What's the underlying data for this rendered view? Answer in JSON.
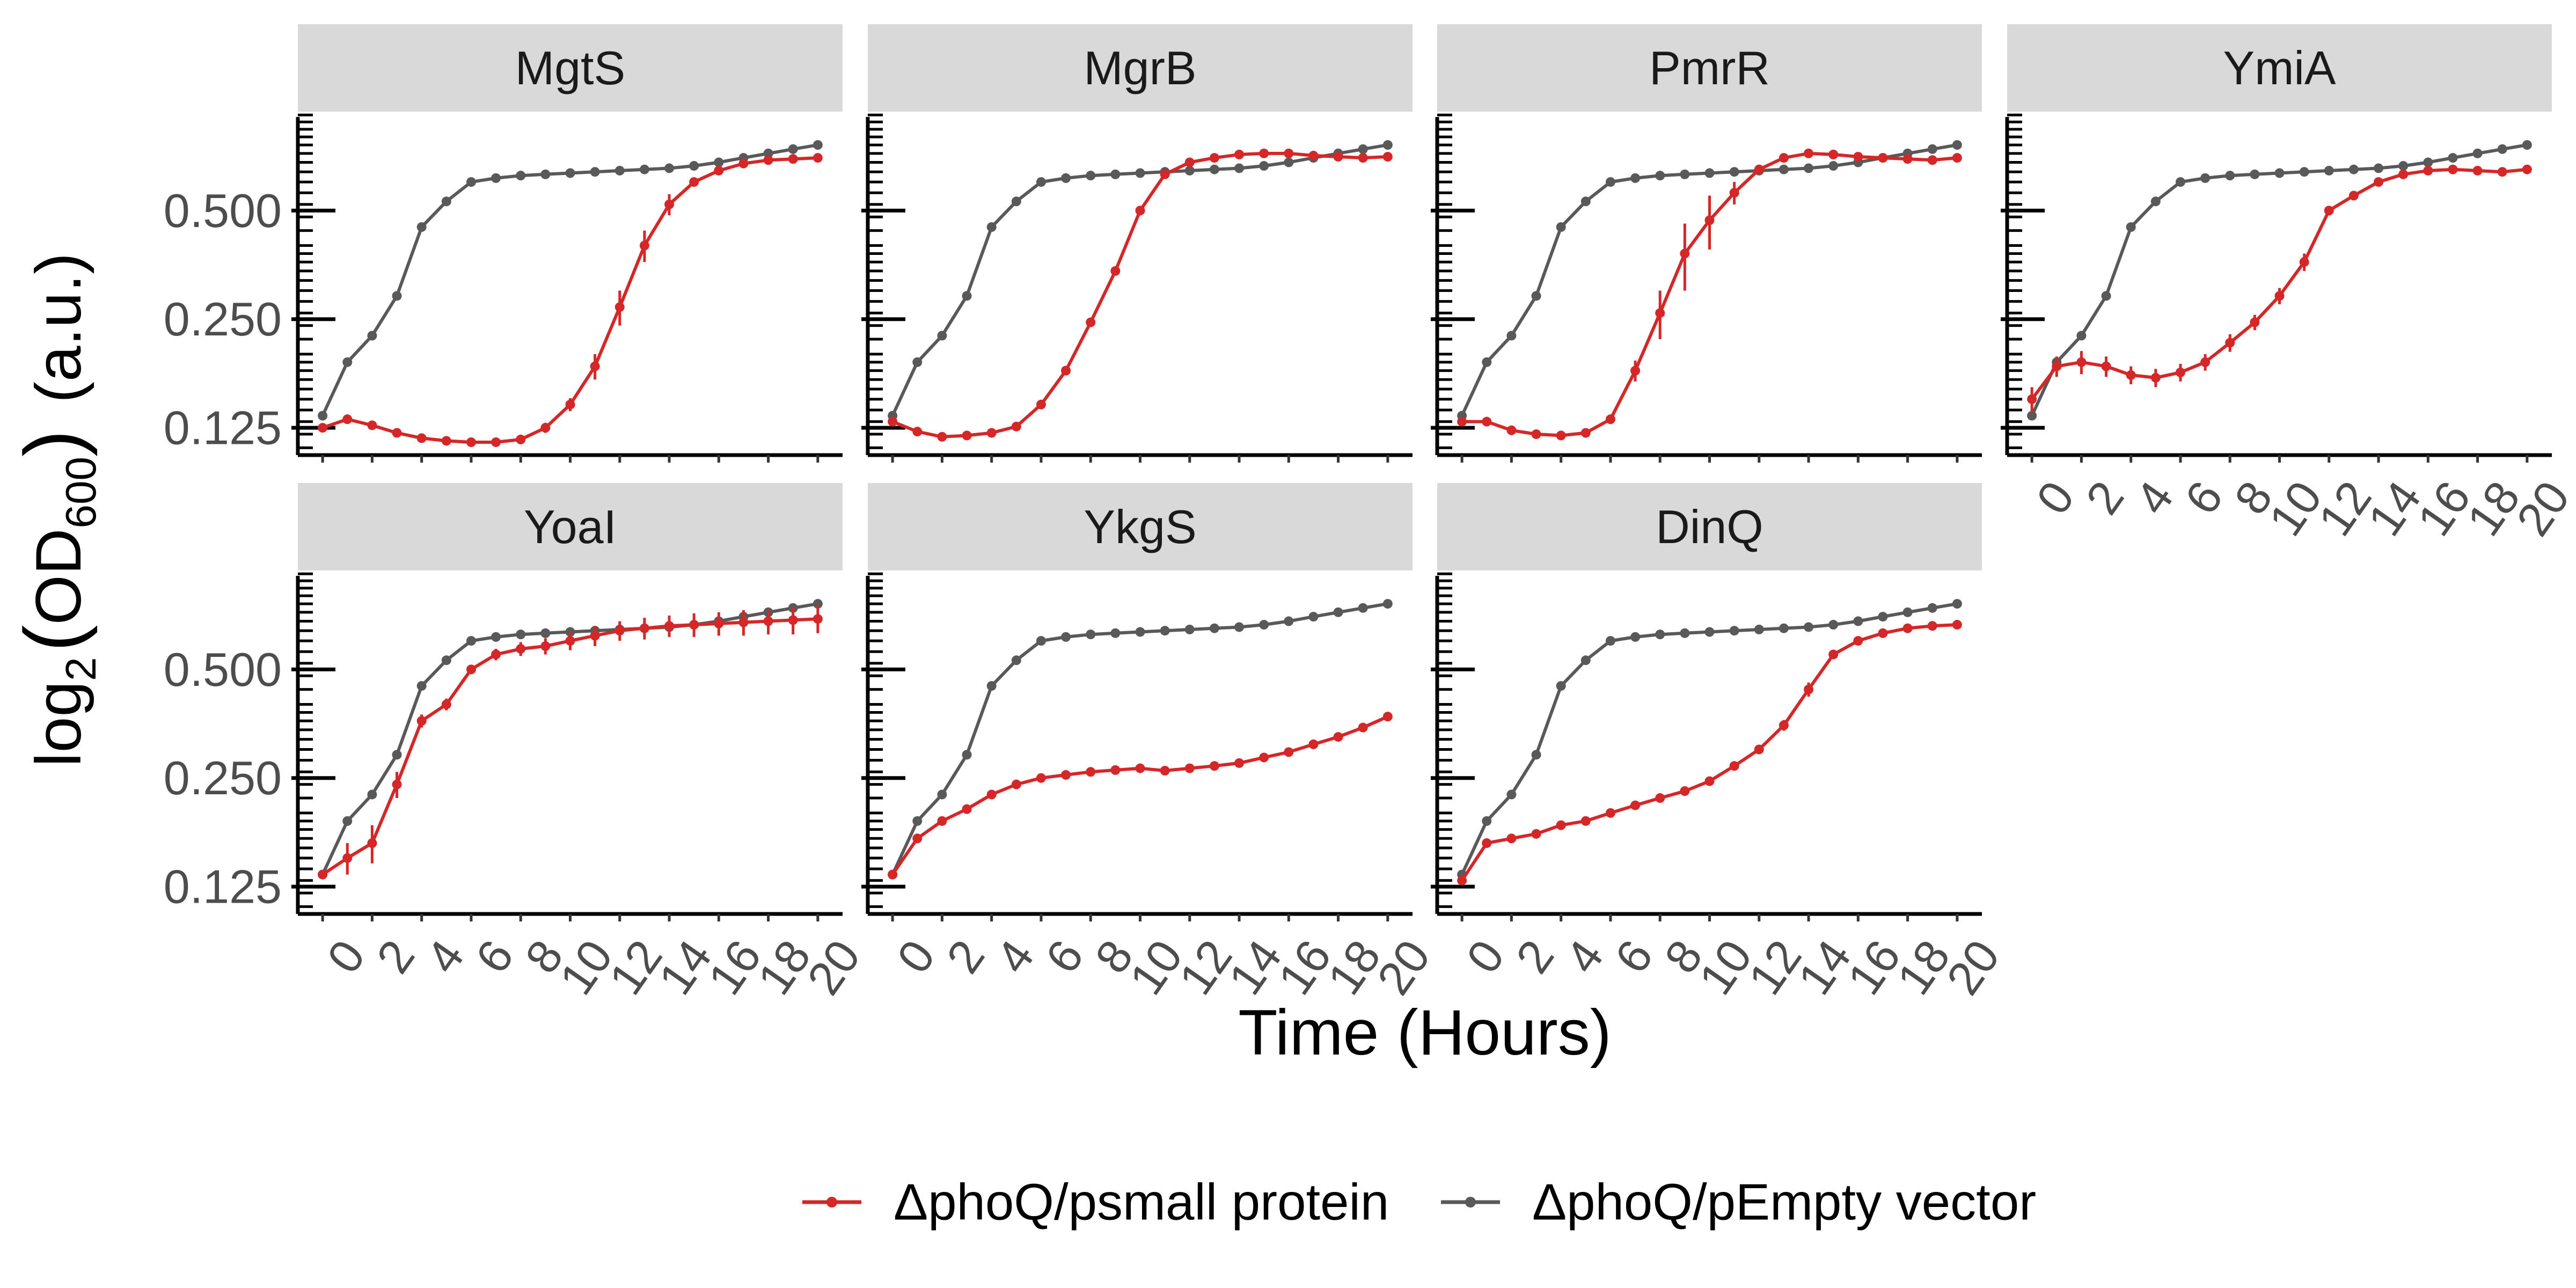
{
  "figure": {
    "ylabel_base": "log",
    "ylabel_sub": "2",
    "ylabel_open": "(",
    "ylabel_od": "OD",
    "ylabel_od_sub": "600",
    "ylabel_close": ")",
    "ylabel_units": "(a.u.)",
    "xlabel": "Time (Hours)"
  },
  "legend": {
    "items": [
      {
        "label": "ΔphoQ/psmall protein",
        "color": "#d62728"
      },
      {
        "label": "ΔphoQ/pEmpty vector",
        "color": "#595959"
      }
    ]
  },
  "chart_data": {
    "type": "line",
    "facets": [
      "MgtS",
      "MgrB",
      "PmrR",
      "YmiA",
      "YoaI",
      "YkgS",
      "DinQ"
    ],
    "x": [
      0,
      1,
      2,
      3,
      4,
      5,
      6,
      7,
      8,
      9,
      10,
      11,
      12,
      13,
      14,
      15,
      16,
      17,
      18,
      19,
      20
    ],
    "x_ticks": [
      0,
      2,
      4,
      6,
      8,
      10,
      12,
      14,
      16,
      18,
      20
    ],
    "x_tick_labels": [
      "0",
      "2",
      "4",
      "6",
      "8",
      "10",
      "12",
      "14",
      "16",
      "18",
      "20"
    ],
    "y_scale": "log2",
    "y_ticks": [
      0.125,
      0.25,
      0.5
    ],
    "y_tick_labels": [
      "0.125",
      "0.250",
      "0.500"
    ],
    "ylim": [
      0.105,
      0.94
    ],
    "xlim": [
      -1,
      21
    ],
    "xlabel": "Time (Hours)",
    "ylabel": "log2(OD600) (a.u.)",
    "legend_position": "bottom",
    "control_series": {
      "name": "ΔphoQ/pEmpty vector",
      "values": [
        0.135,
        0.19,
        0.225,
        0.29,
        0.45,
        0.53,
        0.6,
        0.615,
        0.625,
        0.63,
        0.635,
        0.64,
        0.645,
        0.65,
        0.655,
        0.665,
        0.68,
        0.7,
        0.72,
        0.74,
        0.76
      ]
    },
    "panels": [
      {
        "name": "MgtS",
        "control": [
          0.135,
          0.19,
          0.225,
          0.29,
          0.45,
          0.53,
          0.6,
          0.615,
          0.625,
          0.63,
          0.635,
          0.64,
          0.645,
          0.65,
          0.655,
          0.665,
          0.68,
          0.7,
          0.72,
          0.74,
          0.76
        ],
        "values": [
          0.125,
          0.132,
          0.127,
          0.121,
          0.117,
          0.115,
          0.114,
          0.114,
          0.116,
          0.125,
          0.145,
          0.185,
          0.27,
          0.4,
          0.52,
          0.6,
          0.645,
          0.675,
          0.69,
          0.695,
          0.7
        ],
        "errors": [
          0.003,
          0.003,
          0.003,
          0.003,
          0.003,
          0.003,
          0.003,
          0.003,
          0.003,
          0.004,
          0.006,
          0.015,
          0.03,
          0.04,
          0.035,
          0.015,
          0.01,
          0.01,
          0.01,
          0.01,
          0.01
        ]
      },
      {
        "name": "MgrB",
        "control": [
          0.135,
          0.19,
          0.225,
          0.29,
          0.45,
          0.53,
          0.6,
          0.615,
          0.625,
          0.63,
          0.635,
          0.64,
          0.645,
          0.65,
          0.655,
          0.665,
          0.68,
          0.7,
          0.72,
          0.74,
          0.76
        ],
        "values": [
          0.13,
          0.122,
          0.118,
          0.119,
          0.121,
          0.126,
          0.145,
          0.18,
          0.245,
          0.34,
          0.5,
          0.63,
          0.68,
          0.7,
          0.715,
          0.72,
          0.72,
          0.71,
          0.705,
          0.7,
          0.705
        ],
        "errors": [
          0.003,
          0.003,
          0.003,
          0.003,
          0.003,
          0.003,
          0.004,
          0.005,
          0.006,
          0.008,
          0.01,
          0.012,
          0.015,
          0.015,
          0.015,
          0.015,
          0.012,
          0.01,
          0.01,
          0.01,
          0.01
        ]
      },
      {
        "name": "PmrR",
        "control": [
          0.135,
          0.19,
          0.225,
          0.29,
          0.45,
          0.53,
          0.6,
          0.615,
          0.625,
          0.63,
          0.635,
          0.64,
          0.645,
          0.65,
          0.655,
          0.665,
          0.68,
          0.7,
          0.72,
          0.74,
          0.76
        ],
        "values": [
          0.13,
          0.13,
          0.123,
          0.12,
          0.119,
          0.121,
          0.132,
          0.18,
          0.26,
          0.38,
          0.47,
          0.56,
          0.65,
          0.7,
          0.72,
          0.715,
          0.705,
          0.7,
          0.695,
          0.69,
          0.7
        ],
        "errors": [
          0.003,
          0.003,
          0.003,
          0.003,
          0.003,
          0.003,
          0.004,
          0.012,
          0.04,
          0.08,
          0.08,
          0.04,
          0.02,
          0.015,
          0.015,
          0.012,
          0.01,
          0.01,
          0.01,
          0.01,
          0.01
        ]
      },
      {
        "name": "YmiA",
        "control": [
          0.135,
          0.19,
          0.225,
          0.29,
          0.45,
          0.53,
          0.6,
          0.615,
          0.625,
          0.63,
          0.635,
          0.64,
          0.645,
          0.65,
          0.655,
          0.665,
          0.68,
          0.7,
          0.72,
          0.74,
          0.76
        ],
        "values": [
          0.15,
          0.185,
          0.19,
          0.185,
          0.175,
          0.172,
          0.178,
          0.19,
          0.215,
          0.245,
          0.29,
          0.36,
          0.5,
          0.55,
          0.6,
          0.63,
          0.645,
          0.65,
          0.645,
          0.64,
          0.65
        ],
        "errors": [
          0.012,
          0.012,
          0.014,
          0.012,
          0.01,
          0.01,
          0.01,
          0.01,
          0.012,
          0.012,
          0.015,
          0.02,
          0.015,
          0.012,
          0.012,
          0.012,
          0.012,
          0.012,
          0.012,
          0.015,
          0.015
        ]
      },
      {
        "name": "YoaI",
        "control": [
          0.135,
          0.19,
          0.225,
          0.29,
          0.45,
          0.53,
          0.6,
          0.615,
          0.625,
          0.63,
          0.635,
          0.64,
          0.645,
          0.65,
          0.655,
          0.665,
          0.68,
          0.7,
          0.72,
          0.74,
          0.76
        ],
        "values": [
          0.135,
          0.15,
          0.165,
          0.24,
          0.36,
          0.4,
          0.5,
          0.55,
          0.57,
          0.58,
          0.6,
          0.62,
          0.64,
          0.65,
          0.66,
          0.665,
          0.67,
          0.675,
          0.68,
          0.685,
          0.69
        ],
        "errors": [
          0.004,
          0.015,
          0.02,
          0.02,
          0.015,
          0.015,
          0.015,
          0.02,
          0.025,
          0.03,
          0.035,
          0.04,
          0.04,
          0.045,
          0.045,
          0.05,
          0.05,
          0.055,
          0.055,
          0.06,
          0.06
        ]
      },
      {
        "name": "YkgS",
        "control": [
          0.135,
          0.19,
          0.225,
          0.29,
          0.45,
          0.53,
          0.6,
          0.615,
          0.625,
          0.63,
          0.635,
          0.64,
          0.645,
          0.65,
          0.655,
          0.665,
          0.68,
          0.7,
          0.72,
          0.74,
          0.76
        ],
        "values": [
          0.135,
          0.17,
          0.19,
          0.205,
          0.225,
          0.24,
          0.25,
          0.255,
          0.26,
          0.263,
          0.266,
          0.262,
          0.266,
          0.27,
          0.275,
          0.285,
          0.295,
          0.31,
          0.325,
          0.345,
          0.37
        ],
        "errors": [
          0.003,
          0.004,
          0.004,
          0.004,
          0.004,
          0.004,
          0.004,
          0.004,
          0.004,
          0.004,
          0.004,
          0.004,
          0.004,
          0.004,
          0.004,
          0.004,
          0.004,
          0.005,
          0.005,
          0.006,
          0.008
        ]
      },
      {
        "name": "DinQ",
        "control": [
          0.135,
          0.19,
          0.225,
          0.29,
          0.45,
          0.53,
          0.6,
          0.615,
          0.625,
          0.63,
          0.635,
          0.64,
          0.645,
          0.65,
          0.655,
          0.665,
          0.68,
          0.7,
          0.72,
          0.74,
          0.76
        ],
        "values": [
          0.13,
          0.165,
          0.17,
          0.175,
          0.185,
          0.19,
          0.2,
          0.21,
          0.22,
          0.23,
          0.245,
          0.27,
          0.3,
          0.35,
          0.44,
          0.55,
          0.6,
          0.63,
          0.65,
          0.66,
          0.665
        ],
        "errors": [
          0.003,
          0.004,
          0.004,
          0.004,
          0.004,
          0.004,
          0.004,
          0.004,
          0.004,
          0.004,
          0.004,
          0.005,
          0.006,
          0.012,
          0.02,
          0.015,
          0.012,
          0.01,
          0.01,
          0.01,
          0.01
        ]
      }
    ]
  }
}
